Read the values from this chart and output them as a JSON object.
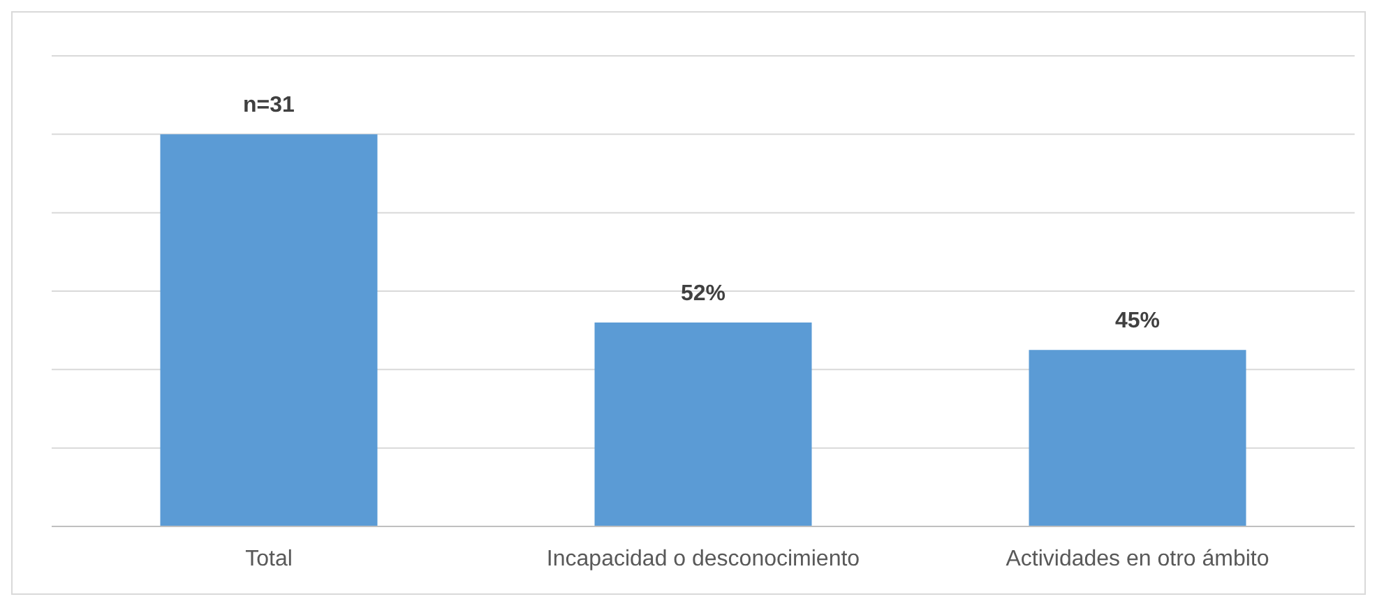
{
  "chart_data": {
    "type": "bar",
    "categories": [
      "Total",
      "Incapacidad o desconocimiento",
      "Actividades en otro ámbito"
    ],
    "values": [
      100,
      52,
      45
    ],
    "value_labels": [
      null,
      "52%",
      "45%"
    ],
    "annotations": [
      {
        "text": "n=31",
        "x": "Total",
        "y": 100
      }
    ],
    "color": "#5b9bd5",
    "ylim": [
      0,
      120
    ],
    "yticks": [
      {
        "value": 0,
        "label": null
      },
      {
        "value": 20,
        "label": null
      },
      {
        "value": 40,
        "label": null
      },
      {
        "value": 60,
        "label": null
      },
      {
        "value": 80,
        "label": null
      },
      {
        "value": 100,
        "label": null
      },
      {
        "value": 120,
        "label": null
      }
    ],
    "grid": "y",
    "tick_labels": "x"
  }
}
